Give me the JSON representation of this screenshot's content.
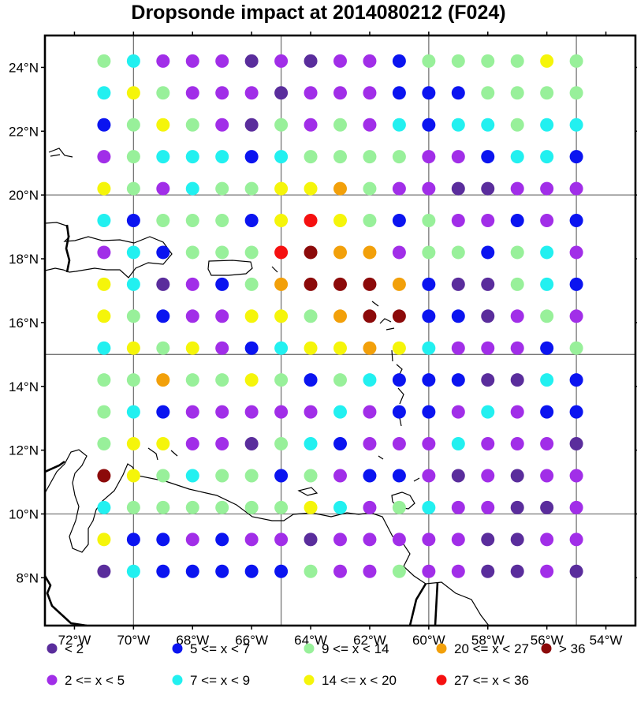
{
  "title": "Dropsonde impact at 2014080212 (F024)",
  "map": {
    "lon_range": [
      -73,
      -53
    ],
    "lat_range": [
      6.5,
      25
    ],
    "grid_lons": [
      -70,
      -65,
      -60,
      -55
    ],
    "grid_lats": [
      10,
      15,
      20,
      25
    ],
    "lon_ticks": [
      {
        "v": -72,
        "t": "72°W"
      },
      {
        "v": -70,
        "t": "70°W"
      },
      {
        "v": -68,
        "t": "68°W"
      },
      {
        "v": -66,
        "t": "66°W"
      },
      {
        "v": -64,
        "t": "64°W"
      },
      {
        "v": -62,
        "t": "62°W"
      },
      {
        "v": -60,
        "t": "60°W"
      },
      {
        "v": -58,
        "t": "58°W"
      },
      {
        "v": -56,
        "t": "56°W"
      },
      {
        "v": -54,
        "t": "54°W"
      }
    ],
    "lat_ticks": [
      {
        "v": 8,
        "t": "8°N"
      },
      {
        "v": 10,
        "t": "10°N"
      },
      {
        "v": 12,
        "t": "12°N"
      },
      {
        "v": 14,
        "t": "14°N"
      },
      {
        "v": 16,
        "t": "16°N"
      },
      {
        "v": 18,
        "t": "18°N"
      },
      {
        "v": 20,
        "t": "20°N"
      },
      {
        "v": 22,
        "t": "22°N"
      },
      {
        "v": 24,
        "t": "24°N"
      }
    ]
  },
  "categories": [
    {
      "code": "A",
      "label": "<  2",
      "color": "#5a2d9c"
    },
    {
      "code": "B",
      "label": "2 <= x <  5",
      "color": "#a12ee8"
    },
    {
      "code": "C",
      "label": "5 <= x <  7",
      "color": "#0b14f0"
    },
    {
      "code": "D",
      "label": "7 <= x <  9",
      "color": "#22f0f0"
    },
    {
      "code": "E",
      "label": "9 <= x < 14",
      "color": "#98f09a"
    },
    {
      "code": "F",
      "label": "14 <= x < 20",
      "color": "#f5f50a"
    },
    {
      "code": "G",
      "label": "20 <= x < 27",
      "color": "#f2a00a"
    },
    {
      "code": "H",
      "label": "27 <= x < 36",
      "color": "#f51010"
    },
    {
      "code": "I",
      "label": "> 36",
      "color": "#8c0a0a"
    }
  ],
  "chart_data": {
    "type": "scatter",
    "title": "Dropsonde impact at 2014080212 (F024)",
    "lons": [
      -71,
      -70,
      -69,
      -68,
      -67,
      -66,
      -65,
      -64,
      -63,
      -62,
      -61,
      -60,
      -59,
      -58,
      -57,
      -56,
      -55
    ],
    "lats": [
      24.2,
      23.2,
      22.2,
      21.2,
      20.2,
      19.2,
      18.2,
      17.2,
      16.2,
      15.2,
      14.2,
      13.2,
      12.2,
      11.2,
      10.2,
      9.2,
      8.2
    ],
    "rows": [
      "EDBBBABABBCEEEEFE",
      "DFEBBBABBBCCCEEEE",
      "CEFEBAEBEBDCDDEDD",
      "BEDDDCDEEEEBBCDDC",
      "FEBDEEFFGEBBAABBB",
      "DCEEECFHFECEBBCBC",
      "BDCEEEHIGGBEECEDB",
      "FDABCEGIIIGCAAEDC",
      "FECBBFFEGIICCABEB",
      "DFEFBCDFFGFDBBBCE",
      "EEGEEFECEDCCCAADC",
      "EDCBBBBBDBCCBDBCC",
      "EFFBBAEDCBBBDBBBA",
      "IFEDEECEBCCBABABB",
      "DEEEEEEFDBEDBBAAB",
      "FCCBCBBABBBBBAABB",
      "ADCCCCCEBBEBBAABA"
    ],
    "legend": [
      "<  2",
      "2 <= x <  5",
      "5 <= x <  7",
      "7 <= x <  9",
      "9 <= x < 14",
      "14 <= x < 20",
      "20 <= x < 27",
      "27 <= x < 36",
      "> 36"
    ]
  }
}
